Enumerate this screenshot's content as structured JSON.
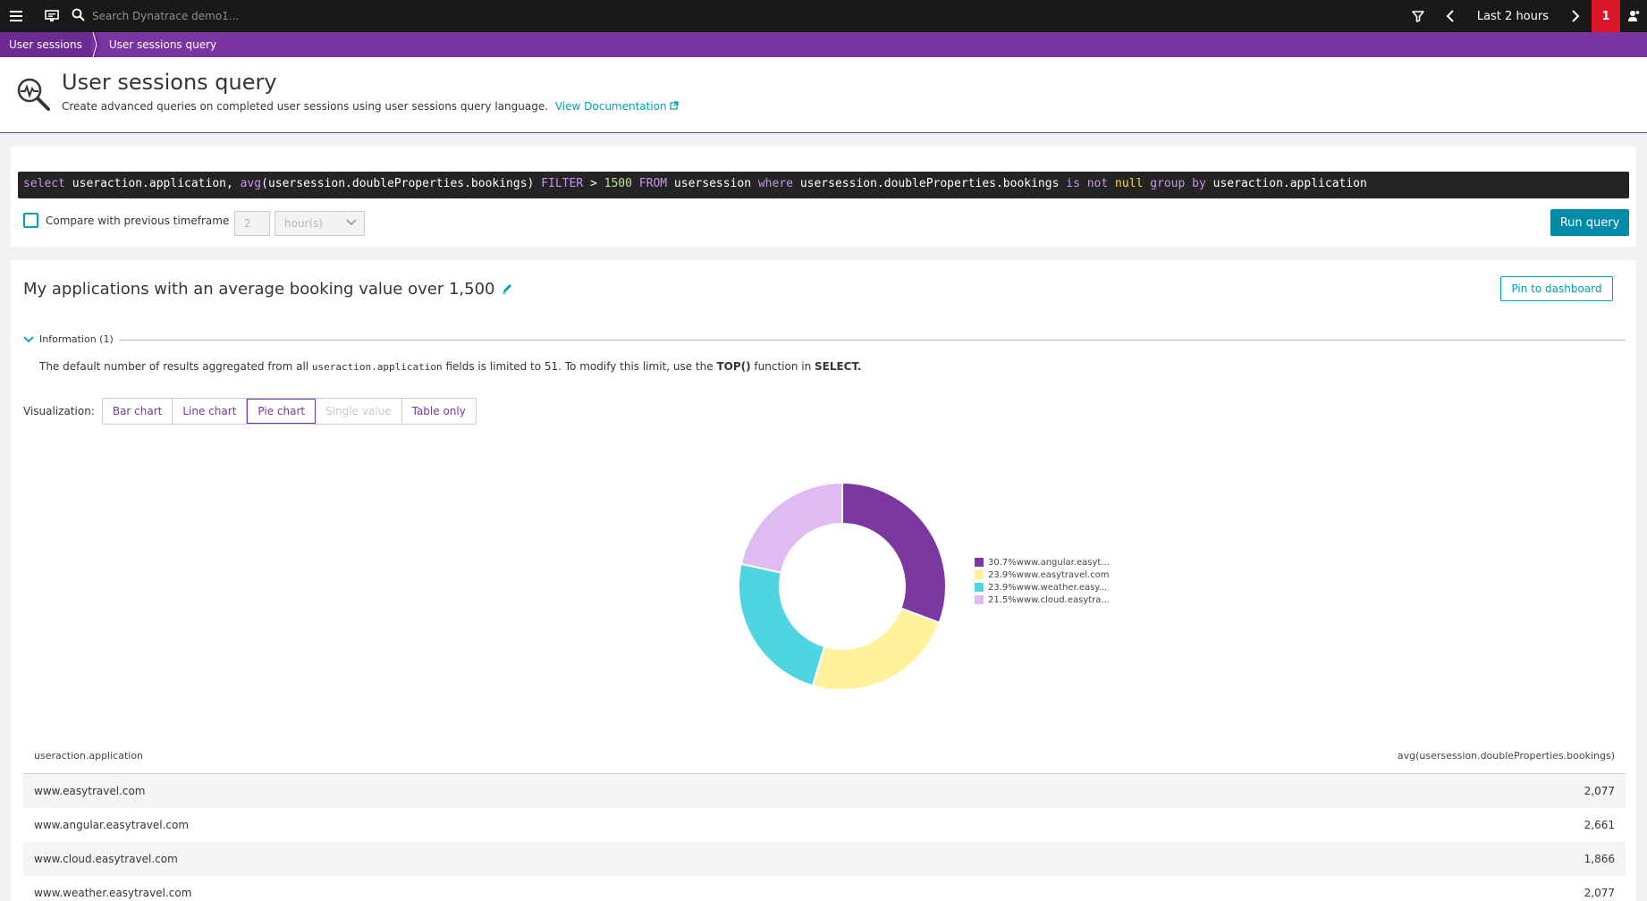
{
  "topbar": {
    "search_placeholder": "Search Dynatrace demo1...",
    "timeframe": "Last 2 hours",
    "problems_count": "1"
  },
  "breadcrumb": {
    "items": [
      "User sessions",
      "User sessions query"
    ]
  },
  "header": {
    "title": "User sessions query",
    "subtitle": "Create advanced queries on completed user sessions using user sessions query language.",
    "doc_link": "View Documentation"
  },
  "query": {
    "tokens": [
      {
        "t": "select",
        "c": "kw"
      },
      {
        "t": " useraction.application, ",
        "c": ""
      },
      {
        "t": "avg",
        "c": "fn"
      },
      {
        "t": "(usersession.doubleProperties.bookings) ",
        "c": ""
      },
      {
        "t": "FILTER",
        "c": "kw"
      },
      {
        "t": " > ",
        "c": ""
      },
      {
        "t": "1500",
        "c": "num"
      },
      {
        "t": " ",
        "c": ""
      },
      {
        "t": "FROM",
        "c": "kw"
      },
      {
        "t": " usersession ",
        "c": ""
      },
      {
        "t": "where",
        "c": "kw"
      },
      {
        "t": " usersession.doubleProperties.bookings ",
        "c": ""
      },
      {
        "t": "is not",
        "c": "kw"
      },
      {
        "t": " ",
        "c": ""
      },
      {
        "t": "null",
        "c": "nul"
      },
      {
        "t": " ",
        "c": ""
      },
      {
        "t": "group by",
        "c": "kw"
      },
      {
        "t": " useraction.application",
        "c": ""
      }
    ],
    "compare_label": "Compare with previous timeframe",
    "compare_value": "2",
    "compare_unit": "hour(s)",
    "run_label": "Run query"
  },
  "results": {
    "title": "My applications with an average booking value over 1,500",
    "pin_label": "Pin to dashboard",
    "info_label": "Information (1)",
    "info_text_1": "The default number of results aggregated from all ",
    "info_code": "useraction.application",
    "info_text_2": " fields is limited to 51. To modify this limit, use the ",
    "info_top": "TOP()",
    "info_text_3": " function in ",
    "info_select": "SELECT.",
    "viz_label": "Visualization:",
    "viz_options": [
      "Bar chart",
      "Line chart",
      "Pie chart",
      "Single value",
      "Table only"
    ],
    "viz_active": "Pie chart"
  },
  "chart_data": {
    "type": "pie",
    "donut": true,
    "slices": [
      {
        "label": "www.angular.easyt...",
        "percent": 30.7,
        "color": "#7c38a1"
      },
      {
        "label": "www.easytravel.com",
        "percent": 23.9,
        "color": "#fff29a"
      },
      {
        "label": "www.weather.easy...",
        "percent": 23.9,
        "color": "#4fd5e0"
      },
      {
        "label": "www.cloud.easytra...",
        "percent": 21.5,
        "color": "#e0bbf2"
      }
    ]
  },
  "table": {
    "columns": [
      "useraction.application",
      "avg(usersession.doubleProperties.bookings)"
    ],
    "rows": [
      [
        "www.easytravel.com",
        "2,077"
      ],
      [
        "www.angular.easytravel.com",
        "2,661"
      ],
      [
        "www.cloud.easytravel.com",
        "1,866"
      ],
      [
        "www.weather.easytravel.com",
        "2,077"
      ]
    ]
  }
}
